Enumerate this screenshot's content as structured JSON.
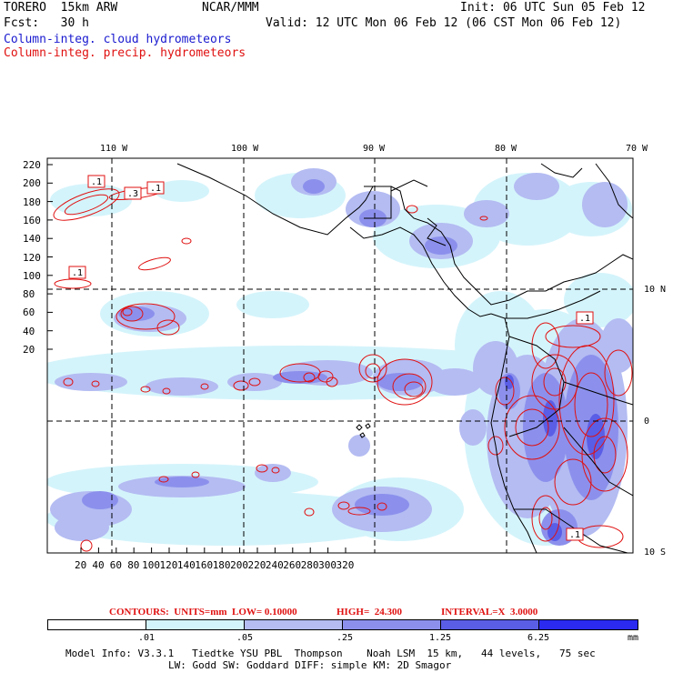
{
  "header": {
    "model": "TORERO  15km ARW",
    "org": "NCAR/MMM",
    "init": "Init: 06 UTC Sun 05 Feb 12",
    "fcst": "Fcst:   30 h",
    "valid": "Valid: 12 UTC Mon 06 Feb 12 (06 CST Mon 06 Feb 12)",
    "cloud_label": "Column-integ. cloud hydrometeors",
    "precip_label": "Column-integ. precip. hydrometeors"
  },
  "map": {
    "lon_labels": [
      "110 W",
      "100 W",
      "90 W",
      "80 W",
      "70 W"
    ],
    "lat_labels": [
      "10 N",
      "0",
      "10 S"
    ],
    "y_ticks": [
      "220",
      "200",
      "180",
      "160",
      "140",
      "120",
      "100",
      "80",
      "60",
      "40",
      "20"
    ],
    "x_ticks": [
      "20",
      "40",
      "60",
      "80",
      "100",
      "120",
      "140",
      "160",
      "180",
      "200",
      "220",
      "240",
      "260",
      "280",
      "300",
      "320"
    ],
    "contour_labels": [
      ".1",
      ".3",
      ".1",
      ".1",
      ".1",
      ".1"
    ]
  },
  "contour_info": {
    "contours": "CONTOURS:  UNITS=mm  LOW= 0.10000",
    "high": "HIGH=  24.300",
    "interval": "INTERVAL=X  3.0000"
  },
  "colorbar": {
    "labels": [
      ".01",
      ".05",
      ".25",
      "1.25",
      "6.25",
      "mm"
    ],
    "colors": [
      "#ffffff",
      "#d4f4fb",
      "#b4bcf2",
      "#8c90ec",
      "#5a5ee6",
      "#2a2af0"
    ]
  },
  "footer": {
    "line1": "Model Info: V3.3.1   Tiedtke YSU PBL  Thompson    Noah LSM  15 km,   44 levels,   75 sec",
    "line2": "LW: Godd SW: Goddard DIFF: simple KM: 2D Smagor"
  }
}
